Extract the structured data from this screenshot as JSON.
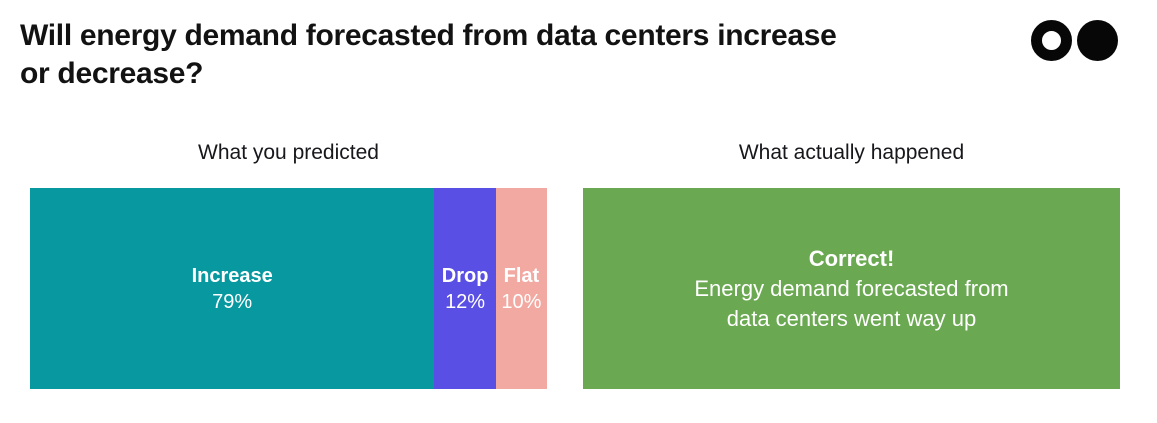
{
  "header": {
    "title": "Will energy demand forecasted from data centers increase or decrease?",
    "logo_icons": [
      "ring-circle",
      "filled-circle"
    ]
  },
  "panels": {
    "predicted_label": "What you predicted",
    "actual_label": "What actually happened"
  },
  "outcome": {
    "title": "Correct!",
    "text": "Energy demand forecasted from data centers went way up",
    "color": "#6aa851"
  },
  "chart_data": {
    "type": "bar",
    "subtype": "horizontal-stacked-single-bar",
    "title": "Will energy demand forecasted from data centers increase or decrease?",
    "panel_labels": [
      "What you predicted",
      "What actually happened"
    ],
    "unit": "%",
    "xlim": [
      0,
      100
    ],
    "series": [
      {
        "name": "Increase",
        "value": 79,
        "label": "79%",
        "color": "#0899a0"
      },
      {
        "name": "Drop",
        "value": 12,
        "label": "12%",
        "color": "#5a4fe4"
      },
      {
        "name": "Flat",
        "value": 10,
        "label": "10%",
        "color": "#f1a9a2"
      }
    ],
    "outcome": {
      "title": "Correct!",
      "text": "Energy demand forecasted from data centers went way up",
      "color": "#6aa851"
    },
    "legend": "none",
    "grid": false
  }
}
